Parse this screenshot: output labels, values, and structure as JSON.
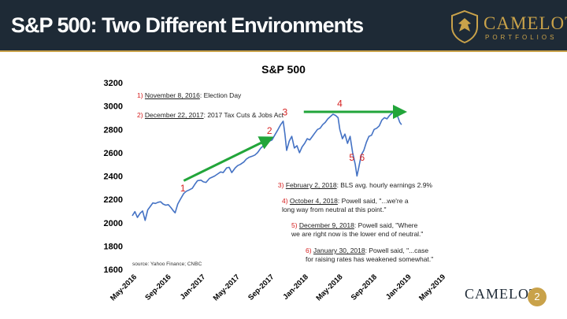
{
  "header": {
    "title": "S&P 500: Two Different Environments"
  },
  "logo": {
    "name": "CAMELOT",
    "sub": "PORTFOLIOS"
  },
  "footer": {
    "logo": "CAMELOT",
    "page": "2"
  },
  "chart_data": {
    "type": "line",
    "title": "S&P 500",
    "source": "source: Yahoo Finance; CNBC",
    "ylim": [
      1600,
      3200
    ],
    "y_ticks": [
      1600,
      1800,
      2000,
      2200,
      2400,
      2600,
      2800,
      3000,
      3200
    ],
    "x_ticks": [
      "May-2016",
      "Sep-2016",
      "Jan-2017",
      "May-2017",
      "Sep-2017",
      "Jan-2018",
      "May-2018",
      "Sep-2018",
      "Jan-2019",
      "May-2019"
    ],
    "line_color": "#4472c4",
    "series": [
      {
        "values": [
          [
            0,
            2060
          ],
          [
            0.3,
            2095
          ],
          [
            0.6,
            2045
          ],
          [
            0.9,
            2080
          ],
          [
            1.2,
            2100
          ],
          [
            1.5,
            2020
          ],
          [
            1.8,
            2110
          ],
          [
            2.1,
            2140
          ],
          [
            2.4,
            2170
          ],
          [
            2.7,
            2165
          ],
          [
            3.0,
            2175
          ],
          [
            3.3,
            2180
          ],
          [
            3.6,
            2160
          ],
          [
            3.9,
            2150
          ],
          [
            4.2,
            2155
          ],
          [
            4.5,
            2130
          ],
          [
            4.8,
            2100
          ],
          [
            5.0,
            2085
          ],
          [
            5.3,
            2160
          ],
          [
            5.6,
            2200
          ],
          [
            6.0,
            2250
          ],
          [
            6.3,
            2270
          ],
          [
            6.6,
            2280
          ],
          [
            7.0,
            2295
          ],
          [
            7.3,
            2330
          ],
          [
            7.6,
            2360
          ],
          [
            8.0,
            2365
          ],
          [
            8.3,
            2350
          ],
          [
            8.6,
            2345
          ],
          [
            9.0,
            2380
          ],
          [
            9.3,
            2390
          ],
          [
            9.6,
            2400
          ],
          [
            10.0,
            2420
          ],
          [
            10.3,
            2435
          ],
          [
            10.6,
            2430
          ],
          [
            11.0,
            2470
          ],
          [
            11.3,
            2475
          ],
          [
            11.6,
            2430
          ],
          [
            12.0,
            2470
          ],
          [
            12.3,
            2490
          ],
          [
            12.6,
            2500
          ],
          [
            13.0,
            2520
          ],
          [
            13.3,
            2545
          ],
          [
            13.6,
            2560
          ],
          [
            14.0,
            2570
          ],
          [
            14.3,
            2580
          ],
          [
            14.6,
            2600
          ],
          [
            15.0,
            2640
          ],
          [
            15.3,
            2660
          ],
          [
            15.6,
            2685
          ],
          [
            16.0,
            2700
          ],
          [
            16.3,
            2710
          ],
          [
            16.6,
            2750
          ],
          [
            17.0,
            2800
          ],
          [
            17.3,
            2840
          ],
          [
            17.6,
            2870
          ],
          [
            17.8,
            2760
          ],
          [
            18.0,
            2620
          ],
          [
            18.3,
            2700
          ],
          [
            18.6,
            2740
          ],
          [
            18.9,
            2640
          ],
          [
            19.2,
            2660
          ],
          [
            19.5,
            2600
          ],
          [
            19.8,
            2650
          ],
          [
            20.1,
            2680
          ],
          [
            20.4,
            2720
          ],
          [
            20.7,
            2710
          ],
          [
            21.0,
            2740
          ],
          [
            21.3,
            2770
          ],
          [
            21.6,
            2800
          ],
          [
            21.9,
            2810
          ],
          [
            22.2,
            2840
          ],
          [
            22.5,
            2860
          ],
          [
            22.8,
            2890
          ],
          [
            23.1,
            2910
          ],
          [
            23.4,
            2930
          ],
          [
            23.7,
            2920
          ],
          [
            24.0,
            2900
          ],
          [
            24.2,
            2800
          ],
          [
            24.5,
            2720
          ],
          [
            24.8,
            2760
          ],
          [
            25.1,
            2680
          ],
          [
            25.4,
            2740
          ],
          [
            25.7,
            2600
          ],
          [
            26.0,
            2500
          ],
          [
            26.2,
            2400
          ],
          [
            26.4,
            2470
          ],
          [
            26.7,
            2580
          ],
          [
            27.0,
            2620
          ],
          [
            27.3,
            2690
          ],
          [
            27.6,
            2740
          ],
          [
            27.9,
            2750
          ],
          [
            28.2,
            2800
          ],
          [
            28.5,
            2810
          ],
          [
            28.8,
            2830
          ],
          [
            29.1,
            2880
          ],
          [
            29.4,
            2900
          ],
          [
            29.7,
            2890
          ],
          [
            30.0,
            2920
          ],
          [
            30.3,
            2940
          ],
          [
            30.6,
            2950
          ],
          [
            30.9,
            2920
          ],
          [
            31.2,
            2860
          ],
          [
            31.4,
            2840
          ]
        ]
      }
    ],
    "arrows": [
      {
        "from": [
          6.0,
          2360
        ],
        "to": [
          16.0,
          2720
        ]
      },
      {
        "from": [
          20.0,
          2950
        ],
        "to": [
          31.5,
          2950
        ]
      }
    ],
    "markers": [
      {
        "label": "1",
        "x": 5.9,
        "y": 2270
      },
      {
        "label": "2",
        "x": 16.0,
        "y": 2760
      },
      {
        "label": "3",
        "x": 17.8,
        "y": 2920
      },
      {
        "label": "4",
        "x": 24.2,
        "y": 2995
      },
      {
        "label": "5",
        "x": 25.6,
        "y": 2530
      },
      {
        "label": "6",
        "x": 26.8,
        "y": 2530
      }
    ],
    "annotations": [
      {
        "num": "1)",
        "link": "November 8, 2016",
        "text": ": Election Day"
      },
      {
        "num": "2)",
        "link": "December 22, 2017",
        "text": ": 2017 Tax Cuts & Jobs Act"
      },
      {
        "num": "3)",
        "link": "February 2, 2018",
        "text": ": BLS avg. hourly earnings 2.9%"
      },
      {
        "num": "4)",
        "link": "October 4, 2018",
        "text": ": Powell said, \"...we're a",
        "text2": "long way from neutral at this point.\""
      },
      {
        "num": "5)",
        "link": "December 9, 2018",
        "text": ": Powell said, \"Where",
        "text2": "we are right now is the lower end of neutral.\""
      },
      {
        "num": "6)",
        "link": "January 30, 2018",
        "text": ": Powell said, \"...case",
        "text2": "for raising rates has weakened somewhat.\""
      }
    ]
  }
}
